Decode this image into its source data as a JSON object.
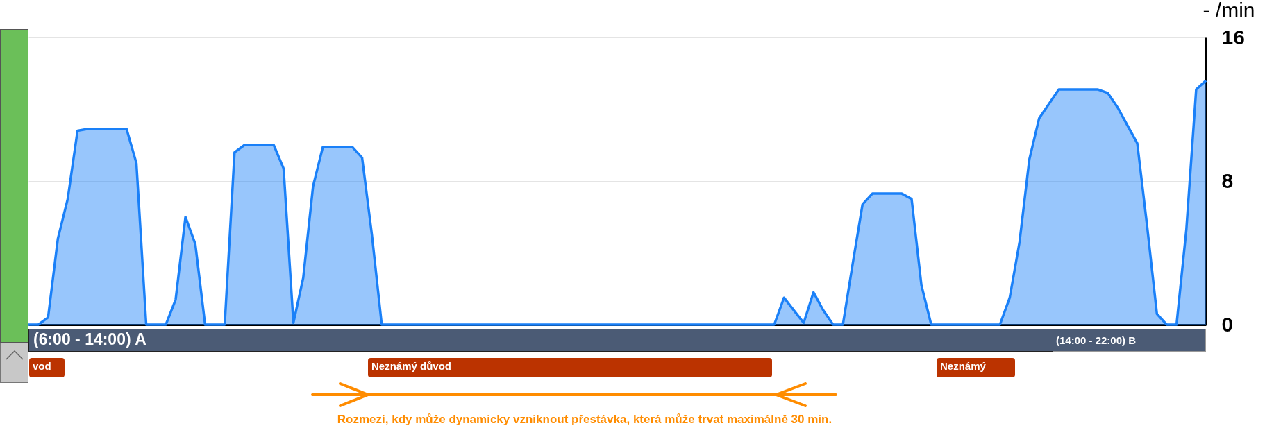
{
  "chart_data": {
    "type": "area",
    "ylabel": "- /min",
    "categories": [
      null,
      null,
      null,
      null,
      null,
      null,
      null,
      null,
      null,
      null,
      null,
      null,
      null,
      null,
      null,
      null,
      null,
      null,
      null,
      null,
      null,
      null,
      null,
      null,
      null,
      null,
      null,
      null,
      null,
      null,
      null,
      null,
      null,
      null,
      null,
      null,
      null,
      null,
      null,
      null,
      null,
      null,
      null,
      null,
      null,
      null,
      null,
      null,
      null,
      null,
      null,
      null,
      null,
      null,
      null,
      null,
      null,
      null,
      null,
      null,
      null,
      null,
      null,
      null,
      null,
      null,
      null,
      null,
      null,
      null,
      null,
      null,
      null,
      null,
      null,
      null,
      null,
      null,
      null,
      null,
      null,
      null,
      null,
      null,
      null,
      null,
      null,
      null,
      null,
      null,
      null,
      null,
      null,
      null,
      null,
      null,
      null,
      null,
      null,
      null,
      null,
      null,
      null,
      null,
      null,
      null,
      null,
      null,
      null,
      null,
      null,
      null,
      null,
      null,
      null,
      null,
      null,
      null,
      null,
      null,
      null
    ],
    "series": [
      {
        "color": "#1a80f8",
        "values": [
          0,
          0,
          0.4,
          4.8,
          7.0,
          10.8,
          10.9,
          10.9,
          10.9,
          10.9,
          10.9,
          9.0,
          0,
          0,
          0,
          1.4,
          6.0,
          4.5,
          0,
          0,
          0,
          9.6,
          10.0,
          10.0,
          10.0,
          10.0,
          8.7,
          0.1,
          2.6,
          7.7,
          9.9,
          9.9,
          9.9,
          9.9,
          9.3,
          5.0,
          0,
          0,
          0,
          0,
          0,
          0,
          0,
          0,
          0,
          0,
          0,
          0,
          0,
          0,
          0,
          0,
          0,
          0,
          0,
          0,
          0,
          0,
          0,
          0,
          0,
          0,
          0,
          0,
          0,
          0,
          0,
          0,
          0,
          0,
          0,
          0,
          0,
          0,
          0,
          0,
          0,
          1.5,
          0.8,
          0.1,
          1.8,
          0.8,
          0,
          0,
          3.4,
          6.7,
          7.3,
          7.3,
          7.3,
          7.3,
          7.0,
          2.2,
          0,
          0,
          0,
          0,
          0,
          0,
          0,
          0,
          1.5,
          4.6,
          9.2,
          11.5,
          12.3,
          13.1,
          13.1,
          13.1,
          13.1,
          13.1,
          12.9,
          12.1,
          11.1,
          10.1,
          5.5,
          0.6,
          0,
          0,
          5.3,
          13.1,
          13.6
        ]
      }
    ],
    "ylim": [
      0,
      16
    ],
    "yticks": [
      0,
      8,
      16
    ],
    "grid": "y",
    "tick_labels": "y",
    "annotations": [
      "(6:00 - 14:00) A",
      "(14:00 - 22:00) B",
      "vod",
      "Neznámý důvod",
      "Neznámý",
      "Rozmezí, kdy může dynamicky vzniknout přestávka, která může trvat maximálně 30 min."
    ]
  }
}
